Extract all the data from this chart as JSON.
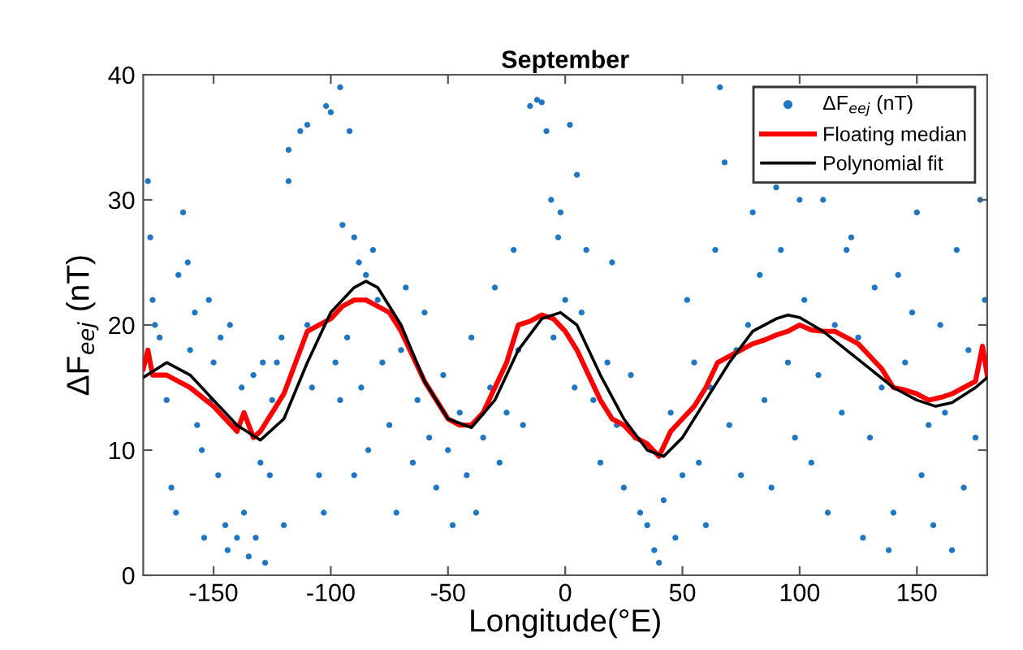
{
  "chart_data": {
    "type": "scatter",
    "title": "September",
    "xlabel": "Longitude(°E)",
    "ylabel": "ΔF$_{eej}$ (nT)",
    "xlim": [
      -180,
      180
    ],
    "ylim": [
      0,
      40
    ],
    "xticks": [
      -150,
      -100,
      -50,
      0,
      50,
      100,
      150
    ],
    "yticks": [
      0,
      10,
      20,
      30,
      40
    ],
    "grid": false,
    "legend": "top right",
    "series": [
      {
        "name": "ΔF$_{eej}$ (nT)",
        "marker": "circle",
        "color": "#1f77c4",
        "x": [
          -178,
          -177,
          -176,
          -175,
          -173,
          -170,
          -168,
          -166,
          -165,
          -163,
          -161,
          -160,
          -158,
          -157,
          -155,
          -154,
          -152,
          -151,
          -150,
          -148,
          -147,
          -145,
          -144,
          -143,
          -141,
          -140,
          -138,
          -137,
          -135,
          -133,
          -132,
          -130,
          -129,
          -128,
          -126,
          -125,
          -123,
          -121,
          -120,
          -118,
          -118,
          -113,
          -110,
          -102,
          -100,
          -96,
          -92,
          -95,
          -90,
          -88,
          -85,
          -82,
          -110,
          -108,
          -105,
          -103,
          -98,
          -96,
          -93,
          -90,
          -87,
          -84,
          -80,
          -78,
          -75,
          -72,
          -70,
          -68,
          -65,
          -63,
          -60,
          -58,
          -55,
          -52,
          -50,
          -48,
          -45,
          -42,
          -40,
          -38,
          -35,
          -32,
          -30,
          -28,
          -25,
          -22,
          -20,
          -18,
          -15,
          -12,
          -10,
          -8,
          -6,
          -5,
          -3,
          -2,
          0,
          2,
          4,
          5,
          7,
          9,
          12,
          15,
          18,
          20,
          22,
          25,
          28,
          30,
          32,
          35,
          38,
          40,
          42,
          45,
          47,
          50,
          52,
          55,
          57,
          60,
          62,
          64,
          66,
          68,
          70,
          73,
          75,
          78,
          80,
          83,
          85,
          88,
          90,
          92,
          95,
          98,
          100,
          102,
          105,
          108,
          110,
          112,
          115,
          118,
          120,
          122,
          125,
          127,
          130,
          132,
          135,
          138,
          140,
          142,
          145,
          148,
          150,
          152,
          155,
          157,
          160,
          162,
          165,
          167,
          170,
          172,
          175,
          177,
          179
        ],
        "values": [
          31.5,
          27,
          22,
          20,
          19,
          14,
          7,
          5,
          24,
          29,
          25,
          18,
          21,
          12,
          10,
          3,
          22,
          14,
          17,
          8,
          19,
          4,
          2,
          20,
          12,
          3,
          15,
          5,
          1.5,
          16,
          3,
          9,
          17,
          1,
          8,
          14,
          17,
          19,
          4,
          34,
          31.5,
          35.5,
          36,
          37.5,
          37,
          39,
          35.5,
          28,
          27,
          25,
          24,
          26,
          20,
          15,
          8,
          5,
          17,
          14,
          19,
          8,
          15,
          10,
          22,
          17,
          12,
          5,
          18,
          23,
          9,
          14,
          21,
          11,
          7,
          16,
          10,
          4,
          13,
          8,
          19,
          5,
          11,
          15,
          23,
          9,
          13,
          26,
          18,
          12,
          37.5,
          38,
          37.8,
          35.5,
          30,
          19,
          27,
          29,
          22,
          36,
          15,
          32,
          21,
          26,
          14,
          9,
          17,
          25,
          12,
          7,
          16,
          11,
          5,
          4,
          2,
          1,
          6,
          13,
          3,
          8,
          22,
          17,
          9,
          4,
          15,
          26,
          39,
          33,
          12,
          18,
          8,
          20,
          29,
          24,
          14,
          7,
          31,
          26,
          17,
          11,
          30,
          22,
          9,
          16,
          30,
          5,
          20,
          13,
          26,
          27,
          19,
          3,
          11,
          23,
          15,
          2,
          5,
          24,
          17,
          21,
          29,
          8,
          12,
          4,
          20,
          13,
          2,
          26,
          7,
          18,
          11,
          30,
          22
        ]
      },
      {
        "name": "Floating median",
        "type": "line",
        "marker": "none",
        "line_style": "solid",
        "color": "#ff0000",
        "x": [
          -180,
          -178,
          -176,
          -170,
          -160,
          -150,
          -145,
          -140,
          -137,
          -133,
          -130,
          -125,
          -120,
          -115,
          -110,
          -105,
          -100,
          -95,
          -90,
          -85,
          -80,
          -75,
          -70,
          -65,
          -60,
          -55,
          -50,
          -45,
          -40,
          -35,
          -30,
          -25,
          -20,
          -15,
          -10,
          -5,
          0,
          5,
          10,
          15,
          20,
          25,
          30,
          35,
          40,
          45,
          50,
          55,
          60,
          65,
          70,
          75,
          80,
          85,
          90,
          95,
          100,
          105,
          110,
          115,
          120,
          125,
          130,
          135,
          140,
          145,
          150,
          155,
          160,
          165,
          170,
          175,
          178,
          180
        ],
        "values": [
          16.5,
          18,
          16,
          16,
          15,
          13.5,
          12.5,
          11.5,
          13,
          11,
          11.5,
          13,
          14.5,
          17,
          19.5,
          20,
          20.5,
          21.5,
          22,
          22,
          21.5,
          21,
          19.5,
          17.5,
          15.5,
          14,
          12.5,
          12,
          12,
          13,
          15,
          17,
          20,
          20.3,
          20.8,
          20.5,
          19.5,
          18,
          16,
          14,
          12.5,
          12,
          11,
          10.5,
          9.5,
          11.5,
          12.5,
          13.5,
          15,
          17,
          17.5,
          18,
          18.5,
          18.8,
          19.2,
          19.5,
          20,
          19.6,
          19.5,
          19.5,
          19,
          18.5,
          17.5,
          16.5,
          15,
          14.8,
          14.5,
          14,
          14.2,
          14.5,
          15,
          15.5,
          18.3,
          16
        ]
      },
      {
        "name": "Polynomial fit",
        "type": "line",
        "marker": "none",
        "line_style": "solid",
        "color": "#000000",
        "x": [
          -180,
          -170,
          -160,
          -150,
          -140,
          -130,
          -120,
          -110,
          -100,
          -90,
          -85,
          -80,
          -70,
          -60,
          -50,
          -40,
          -30,
          -20,
          -10,
          -2,
          5,
          15,
          25,
          35,
          42,
          50,
          60,
          70,
          80,
          90,
          95,
          100,
          110,
          120,
          130,
          140,
          150,
          158,
          165,
          175,
          180
        ],
        "values": [
          15.8,
          17,
          16,
          14,
          12,
          10.8,
          12.5,
          17,
          21,
          23,
          23.5,
          23,
          20,
          15.5,
          12.5,
          11.8,
          14,
          18,
          20.5,
          21,
          20,
          16,
          12.5,
          10,
          9.5,
          11,
          14,
          17,
          19.5,
          20.5,
          20.8,
          20.6,
          19.5,
          18,
          16.5,
          15,
          14,
          13.5,
          13.8,
          15,
          15.8
        ]
      }
    ]
  }
}
